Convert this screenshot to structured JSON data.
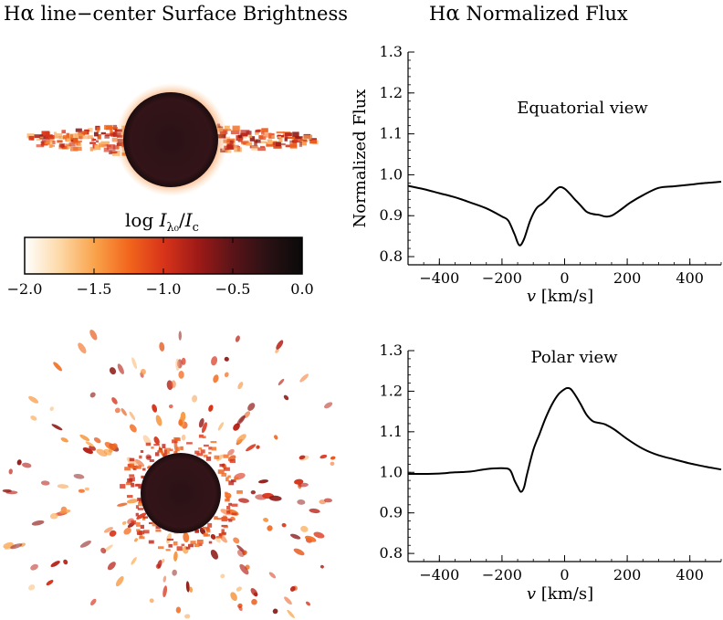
{
  "titles": {
    "left_prefix": "H",
    "left_greek": "α",
    "left_rest": " line−center Surface Brightness",
    "right_prefix": "H",
    "right_greek": "α",
    "right_rest": " Normalized Flux"
  },
  "colorbar": {
    "label_log": "log ",
    "label_I": "I",
    "label_sub": "λ₀",
    "label_slash": "/",
    "label_I2": "I",
    "label_sub2": "c",
    "range": [
      -2.0,
      0.0
    ],
    "ticks": [
      "−2.0",
      "−1.5",
      "−1.0",
      "−0.5",
      "0.0"
    ],
    "colors": [
      "#ffffff",
      "#fdd9a8",
      "#f9a44c",
      "#f2661c",
      "#d8341a",
      "#9e1a17",
      "#5a1418",
      "#2a1114",
      "#0a0a0a"
    ]
  },
  "images": {
    "equatorial_desc": "",
    "polar_desc": ""
  },
  "chart_data": [
    {
      "type": "line",
      "title": "Equatorial view",
      "xlabel_v": "v",
      "xlabel_unit": " [km/s]",
      "ylabel": "Normalized Flux",
      "xlim": [
        -500,
        500
      ],
      "ylim": [
        0.78,
        1.3
      ],
      "xticks": [
        -400,
        -200,
        0,
        200,
        400
      ],
      "xtick_labels": [
        "−400",
        "−200",
        "0",
        "200",
        "400"
      ],
      "yticks": [
        0.8,
        0.9,
        1.0,
        1.1,
        1.2,
        1.3
      ],
      "ytick_labels": [
        "0.8",
        "0.9",
        "1.0",
        "1.1",
        "1.2",
        "1.3"
      ],
      "x": [
        -500,
        -450,
        -400,
        -350,
        -300,
        -250,
        -200,
        -180,
        -160,
        -145,
        -130,
        -110,
        -90,
        -70,
        -50,
        -30,
        -15,
        0,
        15,
        30,
        50,
        70,
        90,
        110,
        130,
        150,
        180,
        210,
        250,
        300,
        350,
        400,
        450,
        500
      ],
      "y": [
        0.973,
        0.965,
        0.955,
        0.945,
        0.932,
        0.918,
        0.898,
        0.888,
        0.855,
        0.828,
        0.842,
        0.888,
        0.918,
        0.93,
        0.945,
        0.962,
        0.97,
        0.966,
        0.955,
        0.942,
        0.926,
        0.91,
        0.904,
        0.902,
        0.898,
        0.9,
        0.915,
        0.932,
        0.95,
        0.968,
        0.972,
        0.976,
        0.98,
        0.983
      ]
    },
    {
      "type": "line",
      "title": "Polar view",
      "xlabel_v": "v",
      "xlabel_unit": " [km/s]",
      "ylabel": "",
      "xlim": [
        -500,
        500
      ],
      "ylim": [
        0.78,
        1.3
      ],
      "xticks": [
        -400,
        -200,
        0,
        200,
        400
      ],
      "xtick_labels": [
        "−400",
        "−200",
        "0",
        "200",
        "400"
      ],
      "yticks": [
        0.8,
        0.9,
        1.0,
        1.1,
        1.2,
        1.3
      ],
      "ytick_labels": [
        "0.8",
        "0.9",
        "1.0",
        "1.1",
        "1.2",
        "1.3"
      ],
      "x": [
        -500,
        -450,
        -400,
        -350,
        -300,
        -250,
        -200,
        -175,
        -160,
        -150,
        -140,
        -130,
        -120,
        -100,
        -80,
        -60,
        -40,
        -20,
        0,
        10,
        20,
        30,
        50,
        70,
        90,
        110,
        130,
        160,
        200,
        250,
        300,
        350,
        400,
        450,
        500
      ],
      "y": [
        0.996,
        0.996,
        0.997,
        1.0,
        1.002,
        1.008,
        1.01,
        1.006,
        0.98,
        0.965,
        0.952,
        0.962,
        0.995,
        1.055,
        1.095,
        1.135,
        1.168,
        1.192,
        1.205,
        1.208,
        1.205,
        1.195,
        1.17,
        1.142,
        1.126,
        1.122,
        1.118,
        1.105,
        1.082,
        1.058,
        1.042,
        1.032,
        1.022,
        1.014,
        1.007
      ]
    }
  ]
}
